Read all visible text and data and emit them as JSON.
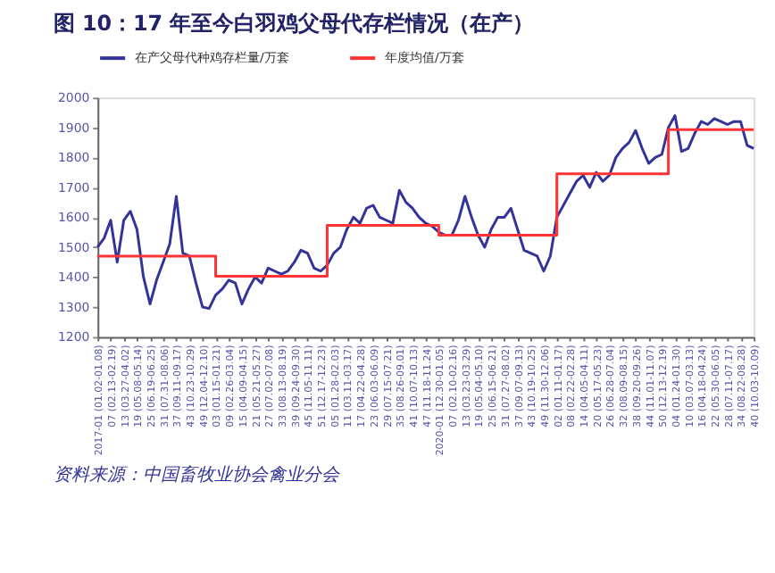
{
  "chart_data": {
    "type": "line",
    "title": "图 10：17 年至今白羽鸡父母代存栏情况（在产）",
    "annotations": [
      "资料来源：中国畜牧业协会禽业分会"
    ],
    "categories": [
      "2017-01 (01.02-01.08)",
      null,
      "07 (02.13-02.19)",
      null,
      "13 (03.27-04.02)",
      null,
      "19 (05.08-05.14)",
      null,
      "25 (06.19-06.25)",
      null,
      "31 (07.31-08.06)",
      null,
      "37 (09.11-09.17)",
      null,
      "43 (10.23-10.29)",
      null,
      "49 (12.04-12.10)",
      null,
      "03 (01.15-01.21)",
      null,
      "09 (02.26-03.04)",
      null,
      "15 (04.09-04.15)",
      null,
      "21 (05.21-05.27)",
      null,
      "27 (07.02-07.08)",
      null,
      "33 (08.13-08.19)",
      null,
      "39 (09.24-09.30)",
      null,
      "45 (11.05-11.11)",
      null,
      "51 (12.17-12.23)",
      null,
      "05 (01.28-02.03)",
      null,
      "11 (03.11-03.17)",
      null,
      "17 (04.22-04.28)",
      null,
      "23 (06.03-06.09)",
      null,
      "29 (07.15-07.21)",
      null,
      "35 (08.26-09.01)",
      null,
      "41 (10.07-10.13)",
      null,
      "47 (11.18-11.24)",
      null,
      "2020-01 (12.30-01.05)",
      null,
      "07 (02.10-02.16)",
      null,
      "13 (03.23-03.29)",
      null,
      "19 (05.04-05.10)",
      null,
      "25 (06.15-06.21)",
      null,
      "31 (07.27-08.02)",
      null,
      "37 (09.07-09.13)",
      null,
      "43 (10.19-10.25)",
      null,
      "49 (11.30-12.06)",
      null,
      "02 (01.11-01.17)",
      null,
      "08 (02.22-02.28)",
      null,
      "14 (04.05-04.11)",
      null,
      "20 (05.17-05.23)",
      null,
      "26 (06.28-07.04)",
      null,
      "32 (08.09-08.15)",
      null,
      "38 (09.20-09.26)",
      null,
      "44 (11.01-11.07)",
      null,
      "50 (12.13-12.19)",
      null,
      "04 (01.24-01.30)",
      null,
      "10 (03.07-03.13)",
      null,
      "16 (04.18-04.24)",
      null,
      "22 (05.30-06.05)",
      null,
      "28 (07.11-07.17)",
      null,
      "34 (08.22-08.28)",
      null,
      "40 (10.03-10.09)"
    ],
    "series": [
      {
        "name": "在产父母代种鸡存栏量/万套",
        "color": "#333399",
        "type": "line",
        "values": [
          1500,
          1530,
          1590,
          1450,
          1590,
          1620,
          1560,
          1400,
          1310,
          1390,
          1450,
          1510,
          1670,
          1480,
          1470,
          1380,
          1300,
          1295,
          1340,
          1360,
          1390,
          1380,
          1310,
          1360,
          1400,
          1380,
          1430,
          1420,
          1410,
          1420,
          1450,
          1490,
          1480,
          1430,
          1420,
          1440,
          1480,
          1500,
          1560,
          1600,
          1580,
          1630,
          1640,
          1600,
          1590,
          1580,
          1690,
          1650,
          1630,
          1600,
          1580,
          1570,
          1550,
          1540,
          1540,
          1590,
          1670,
          1600,
          1540,
          1500,
          1560,
          1600,
          1600,
          1630,
          1560,
          1490,
          1480,
          1470,
          1420,
          1470,
          1600,
          1640,
          1680,
          1720,
          1740,
          1700,
          1750,
          1720,
          1740,
          1800,
          1830,
          1850,
          1890,
          1830,
          1780,
          1800,
          1810,
          1900,
          1940,
          1820,
          1830,
          1880,
          1920,
          1910,
          1930,
          1920,
          1910,
          1920,
          1920,
          1840,
          1830
        ]
      },
      {
        "name": "年度均值/万套",
        "color": "#ff3333",
        "type": "step",
        "values": [
          1470,
          1470,
          1470,
          1470,
          1470,
          1470,
          1470,
          1470,
          1470,
          1470,
          1470,
          1470,
          1470,
          1470,
          1470,
          1470,
          1470,
          1470,
          1403,
          1403,
          1403,
          1403,
          1403,
          1403,
          1403,
          1403,
          1403,
          1403,
          1403,
          1403,
          1403,
          1403,
          1403,
          1403,
          1403,
          1573,
          1573,
          1573,
          1573,
          1573,
          1573,
          1573,
          1573,
          1573,
          1573,
          1573,
          1573,
          1573,
          1573,
          1573,
          1573,
          1573,
          1540,
          1540,
          1540,
          1540,
          1540,
          1540,
          1540,
          1540,
          1540,
          1540,
          1540,
          1540,
          1540,
          1540,
          1540,
          1540,
          1540,
          1540,
          1745,
          1745,
          1745,
          1745,
          1745,
          1745,
          1745,
          1745,
          1745,
          1745,
          1745,
          1745,
          1745,
          1745,
          1745,
          1745,
          1745,
          1893,
          1893,
          1893,
          1893,
          1893,
          1893,
          1893,
          1893,
          1893,
          1893,
          1893,
          1893,
          1893,
          1893
        ]
      }
    ],
    "ylim": [
      1200,
      2000
    ],
    "yticks": [
      1200,
      1300,
      1400,
      1500,
      1600,
      1700,
      1800,
      1900,
      2000
    ],
    "grid": false,
    "legend": "top",
    "marker": "none",
    "line_style": "solid"
  }
}
